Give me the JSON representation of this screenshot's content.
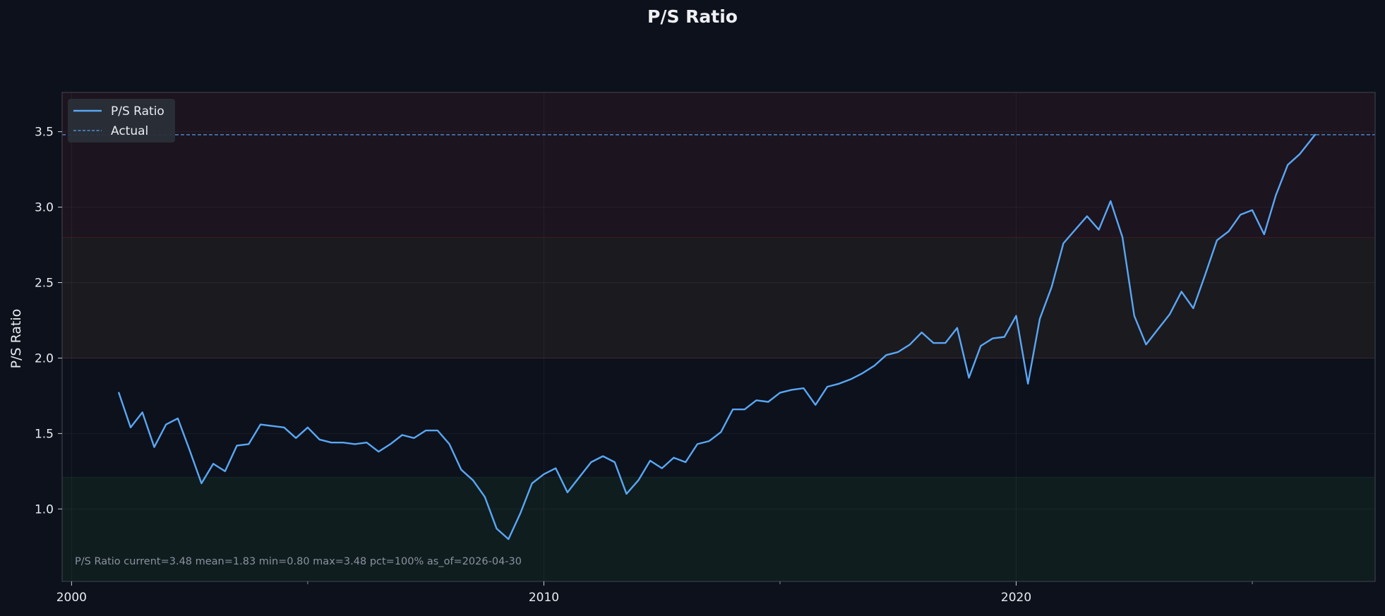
{
  "chart_data": {
    "type": "line",
    "title": "P/S Ratio",
    "xlabel": "",
    "ylabel": "P/S Ratio",
    "xlim": [
      1999.8,
      2027.6
    ],
    "ylim": [
      0.52,
      3.76
    ],
    "x_ticks": [
      2000,
      2010,
      2020
    ],
    "x_tick_labels": [
      "2000",
      "2010",
      "2020"
    ],
    "y_ticks": [
      1.0,
      1.5,
      2.0,
      2.5,
      3.0,
      3.5
    ],
    "y_tick_labels": [
      "1.0",
      "1.5",
      "2.0",
      "2.5",
      "3.0",
      "3.5"
    ],
    "grid": true,
    "legend": {
      "position": "top-left",
      "entries": [
        "P/S Ratio",
        "Actual"
      ]
    },
    "bands": [
      {
        "from": 0.52,
        "to": 1.21,
        "color": "#0f1d1f"
      },
      {
        "from": 2.0,
        "to": 2.8,
        "color": "#1b1a1f"
      },
      {
        "from": 2.8,
        "to": 3.76,
        "color": "#1c141f"
      }
    ],
    "reference_line": {
      "name": "Actual",
      "value": 3.48,
      "color": "#4f8fd9"
    },
    "annotation": "P/S Ratio  current=3.48  mean=1.83  min=0.80  max=3.48  pct=100%  as_of=2026-04-30",
    "series": [
      {
        "name": "P/S Ratio",
        "color": "#5aa7f5",
        "x": [
          2001.0,
          2001.25,
          2001.5,
          2001.75,
          2002.0,
          2002.25,
          2002.5,
          2002.75,
          2003.0,
          2003.25,
          2003.5,
          2003.75,
          2004.0,
          2004.25,
          2004.5,
          2004.75,
          2005.0,
          2005.25,
          2005.5,
          2005.75,
          2006.0,
          2006.25,
          2006.5,
          2006.75,
          2007.0,
          2007.25,
          2007.5,
          2007.75,
          2008.0,
          2008.25,
          2008.5,
          2008.75,
          2009.0,
          2009.25,
          2009.5,
          2009.75,
          2010.0,
          2010.25,
          2010.5,
          2010.75,
          2011.0,
          2011.25,
          2011.5,
          2011.75,
          2012.0,
          2012.25,
          2012.5,
          2012.75,
          2013.0,
          2013.25,
          2013.5,
          2013.75,
          2014.0,
          2014.25,
          2014.5,
          2014.75,
          2015.0,
          2015.25,
          2015.5,
          2015.75,
          2016.0,
          2016.25,
          2016.5,
          2016.75,
          2017.0,
          2017.25,
          2017.5,
          2017.75,
          2018.0,
          2018.25,
          2018.5,
          2018.75,
          2019.0,
          2019.25,
          2019.5,
          2019.75,
          2020.0,
          2020.25,
          2020.5,
          2020.75,
          2021.0,
          2021.25,
          2021.5,
          2021.75,
          2022.0,
          2022.25,
          2022.5,
          2022.75,
          2023.0,
          2023.25,
          2023.5,
          2023.75,
          2024.0,
          2024.25,
          2024.5,
          2024.75,
          2025.0,
          2025.25,
          2025.5,
          2025.75,
          2026.0,
          2026.33
        ],
        "values": [
          1.77,
          1.54,
          1.64,
          1.41,
          1.56,
          1.6,
          1.39,
          1.17,
          1.3,
          1.25,
          1.42,
          1.43,
          1.56,
          1.55,
          1.54,
          1.47,
          1.54,
          1.46,
          1.44,
          1.44,
          1.43,
          1.44,
          1.38,
          1.43,
          1.49,
          1.47,
          1.52,
          1.52,
          1.43,
          1.26,
          1.19,
          1.08,
          0.87,
          0.8,
          0.97,
          1.17,
          1.23,
          1.27,
          1.11,
          1.21,
          1.31,
          1.35,
          1.31,
          1.1,
          1.19,
          1.32,
          1.27,
          1.34,
          1.31,
          1.43,
          1.45,
          1.51,
          1.66,
          1.66,
          1.72,
          1.71,
          1.77,
          1.79,
          1.8,
          1.69,
          1.81,
          1.83,
          1.86,
          1.9,
          1.95,
          2.02,
          2.04,
          2.09,
          2.17,
          2.1,
          2.1,
          2.2,
          1.87,
          2.08,
          2.13,
          2.14,
          2.28,
          1.83,
          2.26,
          2.47,
          2.76,
          2.85,
          2.94,
          2.85,
          3.04,
          2.8,
          2.28,
          2.09,
          2.19,
          2.29,
          2.44,
          2.33,
          2.55,
          2.78,
          2.84,
          2.95,
          2.98,
          2.82,
          3.08,
          3.28,
          3.35,
          3.48
        ]
      }
    ]
  }
}
